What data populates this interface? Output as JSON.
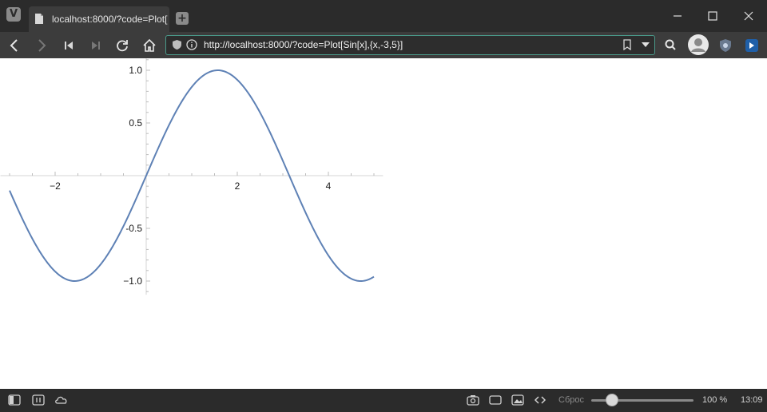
{
  "browser": {
    "tab_title": "localhost:8000/?code=Plot[",
    "address": "http://localhost:8000/?code=Plot[Sin[x],{x,-3,5}]",
    "accent_color": "#4a9a8a"
  },
  "statusbar": {
    "reset_label": "Сброс",
    "zoom": "100 %",
    "zoom_level": 1.0,
    "clock": "13:09"
  },
  "chart_data": {
    "type": "line",
    "function": "Sin[x]",
    "xlim": [
      -3,
      5
    ],
    "ylim": [
      -1,
      1
    ],
    "x_ticks": [
      "−2",
      "2",
      "4"
    ],
    "y_ticks": [
      "1.0",
      "0.5",
      "-0.5",
      "−1.0"
    ],
    "series": [
      {
        "color": "#5e81b5",
        "x": [
          -3,
          -2.5,
          -2,
          -1.5708,
          -1,
          -0.5,
          0,
          0.5,
          1,
          1.5708,
          2,
          2.5,
          3,
          3.5,
          4,
          4.5,
          4.7124,
          5
        ],
        "y": [
          -0.141,
          -0.598,
          -0.909,
          -1.0,
          -0.841,
          -0.479,
          0,
          0.479,
          0.841,
          1.0,
          0.909,
          0.598,
          0.141,
          -0.351,
          -0.757,
          -0.978,
          -1.0,
          -0.959
        ]
      }
    ],
    "grid": false
  }
}
